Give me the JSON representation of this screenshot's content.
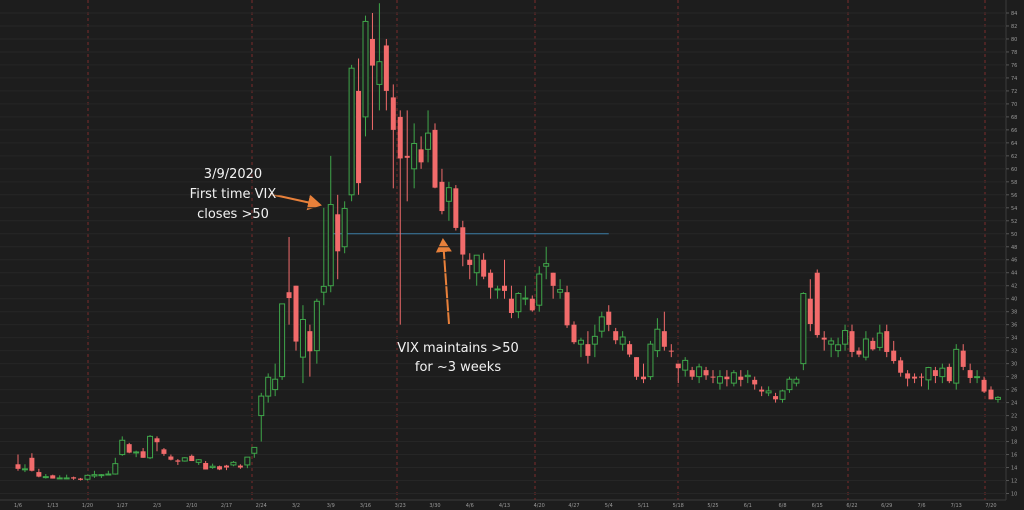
{
  "chart_data": {
    "type": "candlestick",
    "categories": [
      "1/6",
      null,
      null,
      null,
      null,
      "1/13",
      null,
      null,
      null,
      null,
      "1/20",
      null,
      null,
      null,
      null,
      "1/27",
      null,
      null,
      null,
      null,
      "2/3",
      null,
      null,
      null,
      null,
      "2/10",
      null,
      null,
      null,
      null,
      "2/17",
      null,
      null,
      null,
      null,
      "2/24",
      null,
      null,
      null,
      null,
      "3/2",
      null,
      null,
      null,
      null,
      "3/9",
      null,
      null,
      null,
      null,
      "3/16",
      null,
      null,
      null,
      null,
      "3/23",
      null,
      null,
      null,
      null,
      "3/30",
      null,
      null,
      null,
      null,
      "4/6",
      null,
      null,
      null,
      null,
      "4/13",
      null,
      null,
      null,
      null,
      "4/20",
      null,
      null,
      null,
      null,
      "4/27",
      null,
      null,
      null,
      null,
      "5/4",
      null,
      null,
      null,
      null,
      "5/11",
      null,
      null,
      null,
      null,
      "5/18",
      null,
      null,
      null,
      null,
      "5/25",
      null,
      null,
      null,
      null,
      "6/1",
      null,
      null,
      null,
      null,
      "6/8",
      null,
      null,
      null,
      null,
      "6/15",
      null,
      null,
      null,
      null,
      "6/22",
      null,
      null,
      null,
      null,
      "6/29",
      null,
      null,
      null,
      null,
      "7/6",
      null,
      null,
      null,
      null,
      "7/13",
      null,
      null,
      null,
      null,
      "7/20",
      null
    ],
    "ohlc": [
      [
        14.5,
        16.0,
        13.5,
        13.8
      ],
      [
        13.8,
        14.5,
        13.3,
        13.8
      ],
      [
        15.5,
        16.2,
        13.4,
        13.5
      ],
      [
        13.3,
        13.8,
        12.5,
        12.6
      ],
      [
        12.6,
        13.0,
        12.3,
        12.6
      ],
      [
        12.8,
        12.9,
        12.3,
        12.3
      ],
      [
        12.4,
        12.8,
        12.3,
        12.4
      ],
      [
        12.4,
        12.9,
        12.2,
        12.4
      ],
      [
        12.5,
        12.6,
        12.1,
        12.3
      ],
      [
        12.3,
        12.4,
        12.0,
        12.1
      ],
      [
        12.2,
        12.9,
        12.0,
        12.8
      ],
      [
        12.7,
        13.5,
        12.4,
        12.9
      ],
      [
        12.9,
        13.0,
        12.4,
        12.9
      ],
      [
        13.0,
        13.5,
        12.9,
        13.0
      ],
      [
        13.0,
        15.5,
        12.9,
        14.6
      ],
      [
        16.0,
        18.8,
        15.8,
        18.2
      ],
      [
        17.6,
        17.8,
        16.2,
        16.3
      ],
      [
        16.3,
        16.6,
        15.6,
        16.4
      ],
      [
        16.5,
        17.0,
        15.5,
        15.5
      ],
      [
        15.5,
        19.0,
        15.3,
        18.8
      ],
      [
        18.5,
        18.8,
        16.5,
        17.9
      ],
      [
        16.8,
        17.0,
        15.8,
        16.1
      ],
      [
        15.7,
        16.0,
        15.1,
        15.2
      ],
      [
        15.1,
        15.3,
        14.4,
        14.9
      ],
      [
        15.0,
        15.6,
        14.9,
        15.5
      ],
      [
        15.8,
        16.0,
        15.0,
        15.0
      ],
      [
        14.8,
        15.3,
        14.4,
        15.2
      ],
      [
        14.7,
        15.0,
        13.7,
        13.7
      ],
      [
        14.0,
        14.6,
        13.8,
        14.2
      ],
      [
        14.2,
        14.3,
        13.6,
        13.7
      ],
      [
        14.3,
        14.4,
        13.6,
        14.0
      ],
      [
        14.4,
        15.0,
        14.2,
        14.8
      ],
      [
        14.3,
        14.5,
        13.8,
        14.0
      ],
      [
        14.4,
        15.6,
        13.9,
        15.6
      ],
      [
        16.2,
        17.1,
        15.5,
        17.1
      ],
      [
        22.0,
        25.5,
        18.0,
        25.0
      ],
      [
        25.0,
        28.5,
        24.0,
        27.9
      ],
      [
        26.0,
        30.0,
        25.0,
        27.6
      ],
      [
        28.0,
        39.2,
        27.5,
        39.2
      ],
      [
        41,
        49.5,
        36,
        40.1
      ],
      [
        42,
        42,
        32,
        33.4
      ],
      [
        31,
        39,
        27,
        36.8
      ],
      [
        35,
        36,
        28,
        31.9
      ],
      [
        32,
        40,
        30,
        39.6
      ],
      [
        41,
        54,
        39,
        41.9
      ],
      [
        42,
        62,
        41,
        54.5
      ],
      [
        53,
        56,
        43,
        47.3
      ],
      [
        48,
        55,
        47,
        53.9
      ],
      [
        56,
        76,
        55,
        75.5
      ],
      [
        72,
        77,
        56,
        57.8
      ],
      [
        68,
        83.6,
        65,
        82.7
      ],
      [
        80,
        84,
        66,
        75.9
      ],
      [
        73,
        85.5,
        69,
        76.5
      ],
      [
        79,
        80,
        69,
        72.0
      ],
      [
        71,
        73,
        57,
        66.0
      ],
      [
        68,
        69,
        36,
        61.6
      ],
      [
        62,
        69,
        55,
        61.7
      ],
      [
        60,
        67,
        57,
        63.9
      ],
      [
        63,
        65,
        60,
        61.0
      ],
      [
        63,
        69,
        61,
        65.5
      ],
      [
        66,
        67,
        57,
        57.1
      ],
      [
        58,
        60,
        53,
        53.5
      ],
      [
        55,
        58,
        52,
        57.1
      ],
      [
        57,
        57.5,
        50.5,
        50.9
      ],
      [
        51,
        52,
        45,
        46.8
      ],
      [
        46,
        47,
        43,
        45.2
      ],
      [
        44,
        46,
        42,
        46.7
      ],
      [
        46,
        47,
        43,
        43.4
      ],
      [
        44,
        44.5,
        40,
        41.7
      ],
      [
        41.5,
        42,
        40,
        41.5
      ],
      [
        42,
        46,
        40,
        41.2
      ],
      [
        40,
        42,
        37,
        37.8
      ],
      [
        38,
        41,
        37,
        40.8
      ],
      [
        40,
        42,
        39,
        40.1
      ],
      [
        40,
        40.5,
        38,
        38.2
      ],
      [
        39,
        45,
        38,
        43.8
      ],
      [
        45,
        48,
        43,
        45.4
      ],
      [
        44,
        44,
        40,
        41.98
      ],
      [
        41,
        43,
        40,
        41.4
      ],
      [
        41,
        42,
        35.5,
        35.9
      ],
      [
        36,
        36.5,
        33,
        33.3
      ],
      [
        33,
        34,
        31,
        33.6
      ],
      [
        33,
        35,
        30,
        31.2
      ],
      [
        33,
        36,
        31,
        34.2
      ],
      [
        35,
        38,
        34,
        37.2
      ],
      [
        38,
        39,
        35,
        35.97
      ],
      [
        35,
        35.5,
        33,
        33.6
      ],
      [
        33,
        35,
        32,
        34.1
      ],
      [
        33,
        33.5,
        31,
        31.4
      ],
      [
        31,
        31,
        27.5,
        27.98
      ],
      [
        28,
        30,
        27,
        27.6
      ],
      [
        28,
        33.5,
        27.5,
        33.0
      ],
      [
        32,
        37,
        31,
        35.3
      ],
      [
        35,
        38,
        32,
        32.6
      ],
      [
        32,
        33,
        31,
        31.9
      ],
      [
        30,
        30,
        27,
        29.3
      ],
      [
        29,
        31,
        28,
        30.5
      ],
      [
        29,
        29.5,
        27.5,
        27.99
      ],
      [
        28,
        30,
        27,
        29.5
      ],
      [
        29,
        29.5,
        27.5,
        28.2
      ],
      [
        28,
        29,
        27,
        27.9
      ],
      [
        27,
        29,
        26,
        28.0
      ],
      [
        28,
        29,
        26.5,
        27.6
      ],
      [
        27,
        29,
        26.5,
        28.6
      ],
      [
        28,
        29,
        26.5,
        27.5
      ],
      [
        28,
        29,
        27,
        28.2
      ],
      [
        27.5,
        28,
        26,
        26.8
      ],
      [
        26,
        26.5,
        25,
        25.7
      ],
      [
        25.5,
        26.5,
        25,
        25.8
      ],
      [
        25,
        25.5,
        24,
        24.5
      ],
      [
        24.5,
        26,
        24,
        25.8
      ],
      [
        26,
        28,
        25.5,
        27.6
      ],
      [
        27,
        28,
        26.5,
        27.6
      ],
      [
        30,
        41,
        29,
        40.8
      ],
      [
        40,
        43,
        35,
        36.1
      ],
      [
        44,
        44.5,
        34,
        34.4
      ],
      [
        34,
        35,
        32,
        33.7
      ],
      [
        33,
        34,
        31,
        33.5
      ],
      [
        32,
        34,
        31,
        32.9
      ],
      [
        33,
        36,
        32,
        35.1
      ],
      [
        35,
        36,
        31,
        31.8
      ],
      [
        32,
        32.5,
        31,
        31.4
      ],
      [
        31,
        35,
        30.5,
        33.8
      ],
      [
        33.5,
        34,
        32,
        32.2
      ],
      [
        32.5,
        36,
        32,
        34.7
      ],
      [
        35,
        36,
        31,
        31.8
      ],
      [
        32,
        33.5,
        30,
        30.4
      ],
      [
        30.5,
        31,
        28,
        28.6
      ],
      [
        28.5,
        29,
        26.5,
        27.7
      ],
      [
        28,
        28.5,
        27,
        27.7
      ],
      [
        28,
        28.5,
        26.5,
        27.9
      ],
      [
        27.5,
        29.5,
        26,
        29.4
      ],
      [
        29,
        29.5,
        27,
        28.1
      ],
      [
        28,
        30,
        27,
        29.3
      ],
      [
        29.5,
        30,
        27,
        27.3
      ],
      [
        27,
        33,
        26,
        32.2
      ],
      [
        32,
        33,
        29,
        29.5
      ],
      [
        29,
        30,
        27,
        27.8
      ],
      [
        28,
        29,
        27,
        28.0
      ],
      [
        27.5,
        28,
        25.5,
        25.7
      ],
      [
        26,
        26.5,
        24.5,
        24.5
      ],
      [
        24.5,
        25,
        24,
        24.8
      ]
    ],
    "up_color": "#3fa64a",
    "down_color": "#f26b6b",
    "ylim": [
      9,
      86
    ],
    "yticks": [
      10,
      12,
      14,
      16,
      18,
      20,
      22,
      24,
      26,
      28,
      30,
      32,
      34,
      36,
      38,
      40,
      42,
      44,
      46,
      48,
      50,
      52,
      54,
      56,
      58,
      60,
      62,
      64,
      66,
      68,
      70,
      72,
      74,
      76,
      78,
      80,
      82,
      84
    ],
    "grid": true,
    "reference_line": {
      "value": 50,
      "from": "3/9",
      "to": "5/4",
      "color": "#3a7ca5"
    },
    "annotations": [
      {
        "lines": [
          "3/9/2020",
          "First time VIX",
          "closes >50"
        ]
      },
      {
        "lines": [
          "VIX maintains >50",
          "for ~3 weeks"
        ]
      }
    ]
  }
}
